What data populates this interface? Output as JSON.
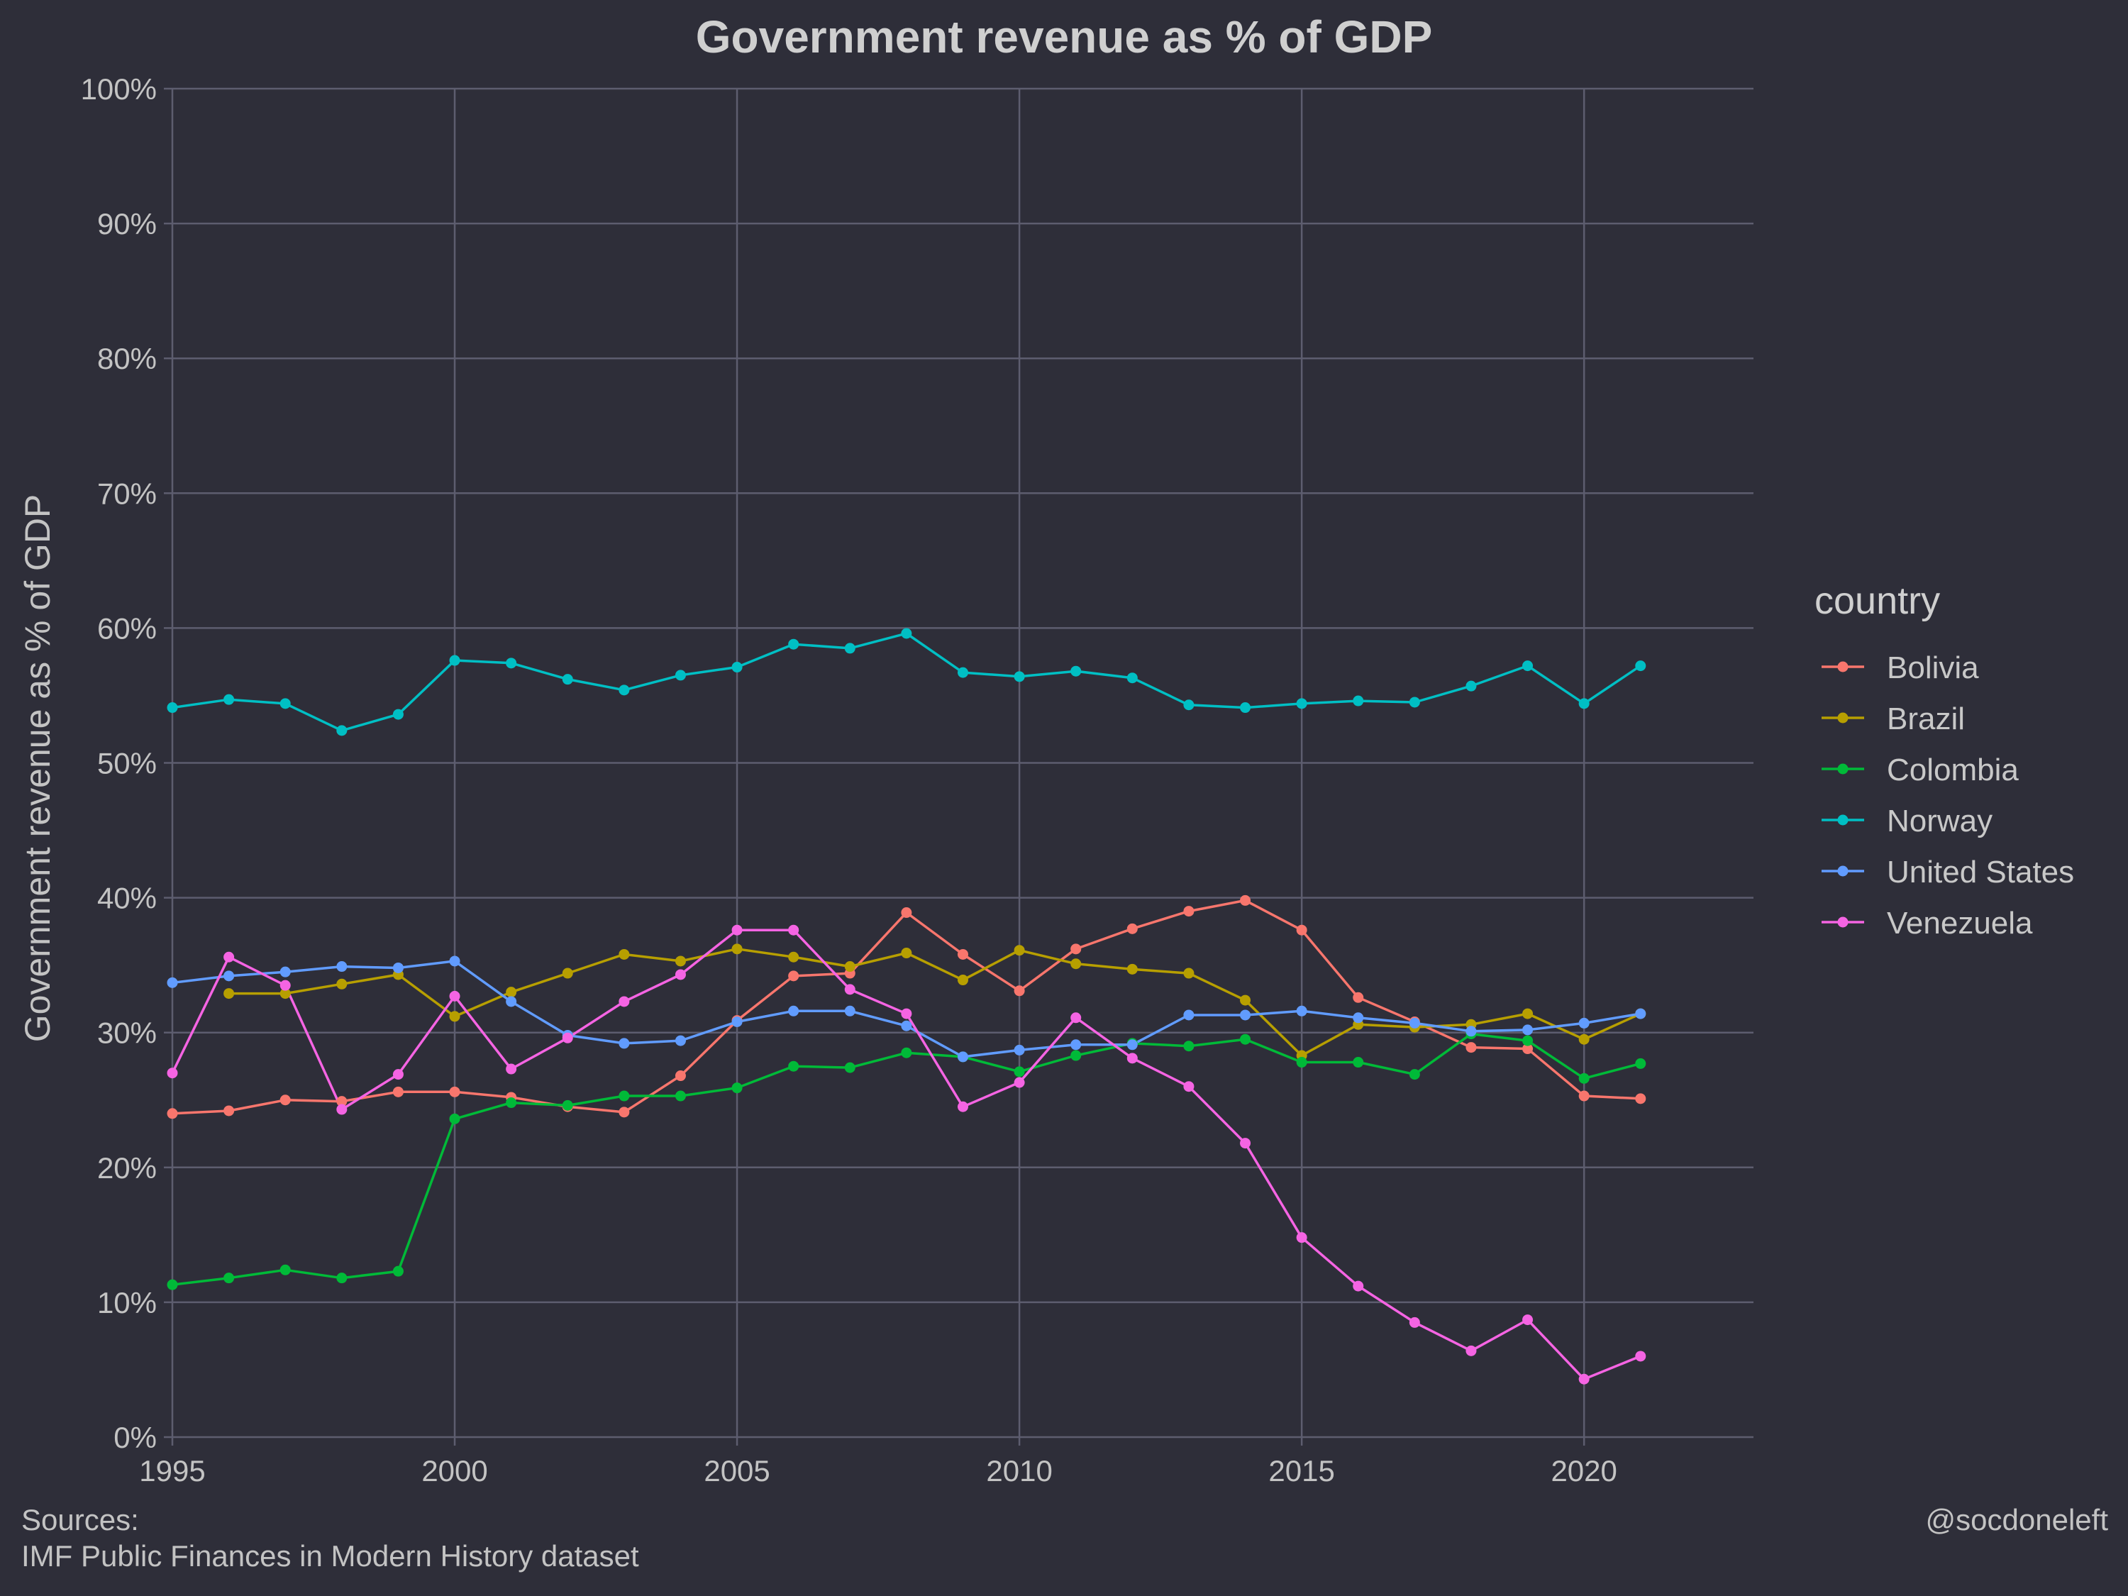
{
  "chart_data": {
    "type": "line",
    "title": "Government revenue as % of GDP",
    "xlabel": "",
    "ylabel": "Government revenue as % of GDP",
    "xlim": [
      1995,
      2023
    ],
    "ylim": [
      0,
      100
    ],
    "x_ticks": [
      1995,
      2000,
      2005,
      2010,
      2015,
      2020
    ],
    "x_tick_labels": [
      "1995",
      "2000",
      "2005",
      "2010",
      "2015",
      "2020"
    ],
    "y_ticks": [
      0,
      10,
      20,
      30,
      40,
      50,
      60,
      70,
      80,
      90,
      100
    ],
    "y_tick_labels": [
      "0%",
      "10%",
      "20%",
      "30%",
      "40%",
      "50%",
      "60%",
      "70%",
      "80%",
      "90%",
      "100%"
    ],
    "grid": true,
    "legend_title": "country",
    "legend_position": "right",
    "series": [
      {
        "name": "Bolivia",
        "color": "#f8766d",
        "x": [
          1995,
          1996,
          1997,
          1998,
          1999,
          2000,
          2001,
          2002,
          2003,
          2004,
          2005,
          2006,
          2007,
          2008,
          2009,
          2010,
          2011,
          2012,
          2013,
          2014,
          2015,
          2016,
          2017,
          2018,
          2019,
          2020,
          2021
        ],
        "values": [
          24.0,
          24.2,
          25.0,
          24.9,
          25.6,
          25.6,
          25.2,
          24.5,
          24.1,
          26.8,
          30.9,
          34.2,
          34.4,
          38.9,
          35.8,
          33.1,
          36.2,
          37.7,
          39.0,
          39.8,
          37.6,
          32.6,
          30.8,
          28.9,
          28.8,
          25.3,
          25.1
        ]
      },
      {
        "name": "Brazil",
        "color": "#b79f00",
        "x": [
          1996,
          1997,
          1998,
          1999,
          2000,
          2001,
          2002,
          2003,
          2004,
          2005,
          2006,
          2007,
          2008,
          2009,
          2010,
          2011,
          2012,
          2013,
          2014,
          2015,
          2016,
          2017,
          2018,
          2019,
          2020,
          2021
        ],
        "values": [
          32.9,
          32.9,
          33.6,
          34.3,
          31.2,
          33.0,
          34.4,
          35.8,
          35.3,
          36.2,
          35.6,
          34.9,
          35.9,
          33.9,
          36.1,
          35.1,
          34.7,
          34.4,
          32.4,
          28.3,
          30.6,
          30.4,
          30.6,
          31.4,
          29.5,
          31.4
        ]
      },
      {
        "name": "Colombia",
        "color": "#00ba38",
        "x": [
          1995,
          1996,
          1997,
          1998,
          1999,
          2000,
          2001,
          2002,
          2003,
          2004,
          2005,
          2006,
          2007,
          2008,
          2009,
          2010,
          2011,
          2012,
          2013,
          2014,
          2015,
          2016,
          2017,
          2018,
          2019,
          2020,
          2021
        ],
        "values": [
          11.3,
          11.8,
          12.4,
          11.8,
          12.3,
          23.6,
          24.8,
          24.6,
          25.3,
          25.3,
          25.9,
          27.5,
          27.4,
          28.5,
          28.2,
          27.1,
          28.3,
          29.2,
          29.0,
          29.5,
          27.8,
          27.8,
          26.9,
          29.9,
          29.4,
          26.6,
          27.7
        ]
      },
      {
        "name": "Norway",
        "color": "#00bfc4",
        "x": [
          1995,
          1996,
          1997,
          1998,
          1999,
          2000,
          2001,
          2002,
          2003,
          2004,
          2005,
          2006,
          2007,
          2008,
          2009,
          2010,
          2011,
          2012,
          2013,
          2014,
          2015,
          2016,
          2017,
          2018,
          2019,
          2020,
          2021
        ],
        "values": [
          54.1,
          54.7,
          54.4,
          52.4,
          53.6,
          57.6,
          57.4,
          56.2,
          55.4,
          56.5,
          57.1,
          58.8,
          58.5,
          59.6,
          56.7,
          56.4,
          56.8,
          56.3,
          54.3,
          54.1,
          54.4,
          54.6,
          54.5,
          55.7,
          57.2,
          54.4,
          57.2
        ]
      },
      {
        "name": "United States",
        "color": "#619cff",
        "x": [
          1995,
          1996,
          1997,
          1998,
          1999,
          2000,
          2001,
          2002,
          2003,
          2004,
          2005,
          2006,
          2007,
          2008,
          2009,
          2010,
          2011,
          2012,
          2013,
          2014,
          2015,
          2016,
          2017,
          2018,
          2019,
          2020,
          2021
        ],
        "values": [
          33.7,
          34.2,
          34.5,
          34.9,
          34.8,
          35.3,
          32.3,
          29.8,
          29.2,
          29.4,
          30.8,
          31.6,
          31.6,
          30.5,
          28.2,
          28.7,
          29.1,
          29.1,
          31.3,
          31.3,
          31.6,
          31.1,
          30.7,
          30.1,
          30.2,
          30.7,
          31.4
        ]
      },
      {
        "name": "Venezuela",
        "color": "#f564e3",
        "x": [
          1995,
          1996,
          1997,
          1998,
          1999,
          2000,
          2001,
          2002,
          2003,
          2004,
          2005,
          2006,
          2007,
          2008,
          2009,
          2010,
          2011,
          2012,
          2013,
          2014,
          2015,
          2016,
          2017,
          2018,
          2019,
          2020,
          2021
        ],
        "values": [
          27.0,
          35.6,
          33.5,
          24.3,
          26.9,
          32.7,
          27.3,
          29.6,
          32.3,
          34.3,
          37.6,
          37.6,
          33.2,
          31.4,
          24.5,
          26.3,
          31.1,
          28.1,
          26.0,
          21.8,
          14.8,
          11.2,
          8.5,
          6.4,
          8.7,
          4.3,
          6.0
        ]
      }
    ]
  },
  "caption": {
    "sources_label": "Sources:",
    "sources_text": "IMF Public Finances in Modern History dataset",
    "handle": "@socdoneleft"
  }
}
